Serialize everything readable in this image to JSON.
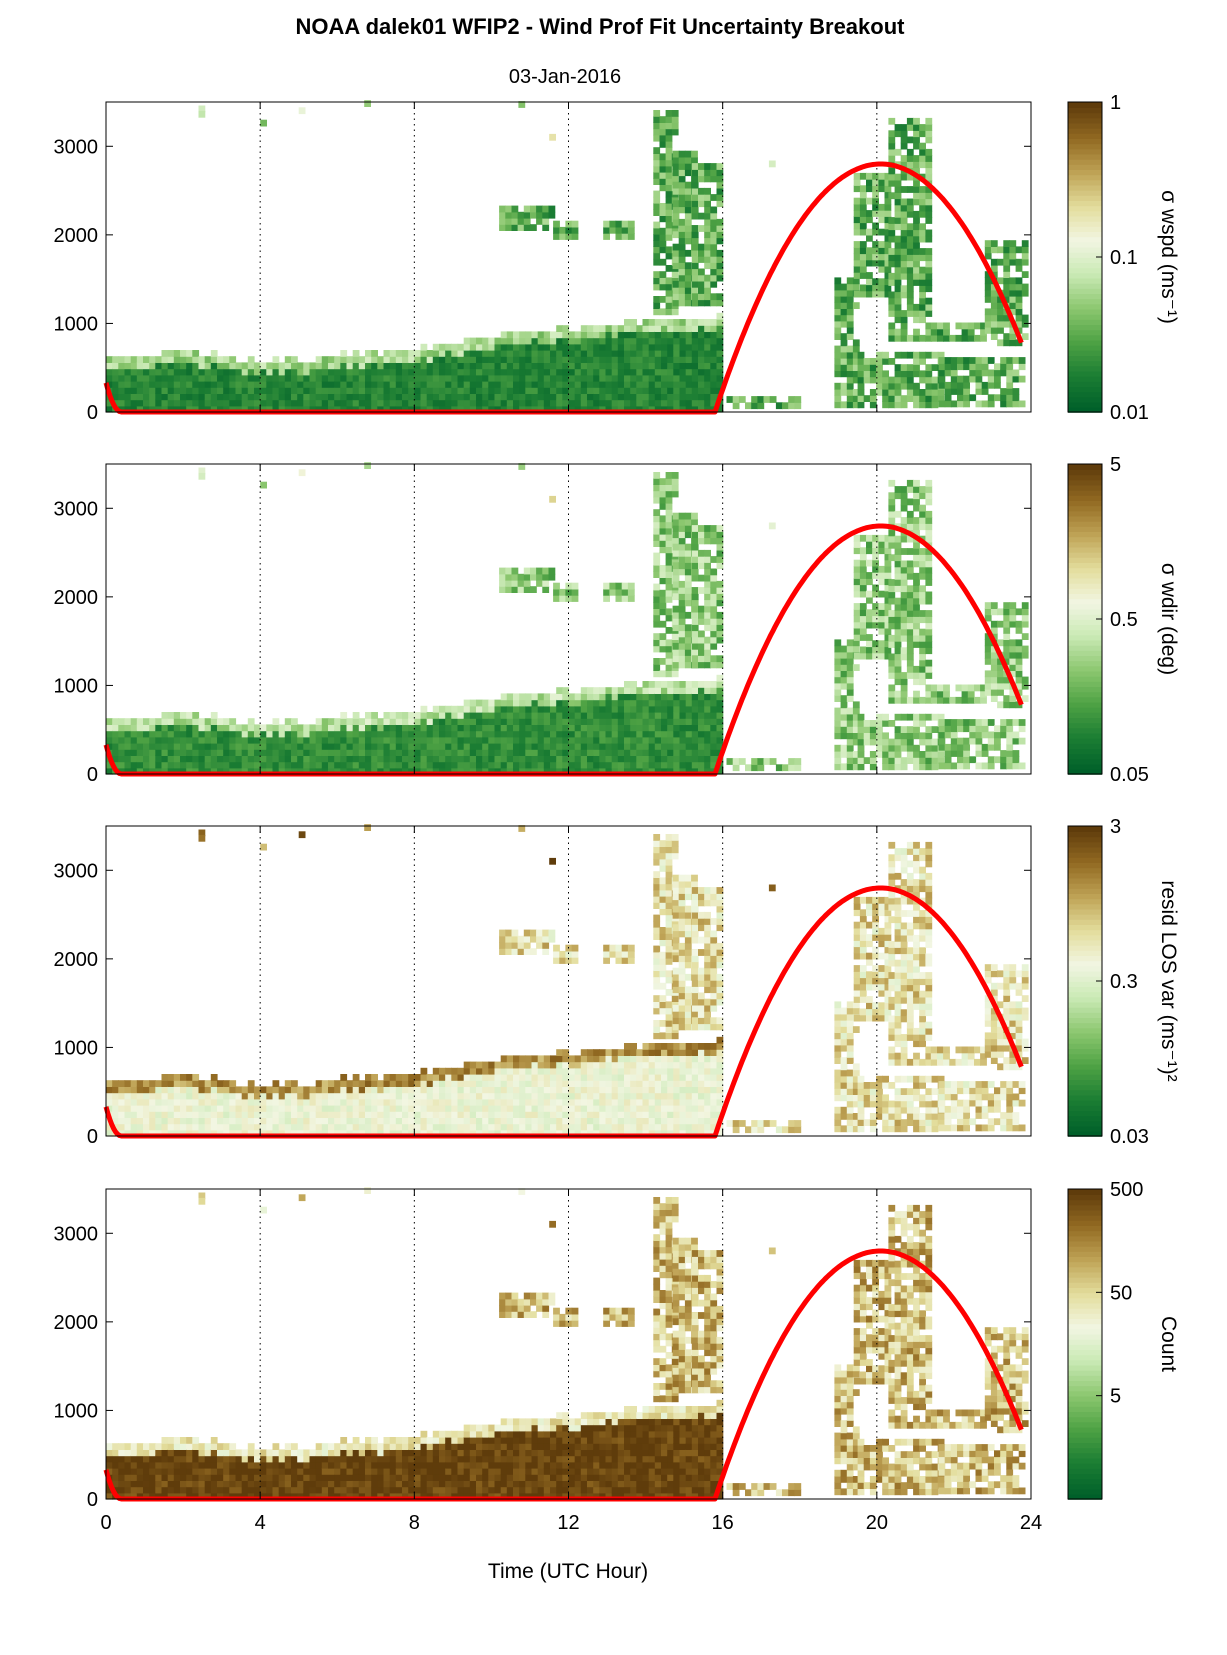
{
  "figure": {
    "title": "NOAA dalek01 WFIP2 - Wind Prof Fit Uncertainty Breakout",
    "subtitle": "03-Jan-2016",
    "xlabel": "Time (UTC Hour)"
  },
  "chart_data": [
    {
      "type": "heatmap",
      "variable": "sigma_wspd",
      "colorbar_label": "σ wspd (ms⁻¹)",
      "colorbar_scale": "log",
      "colorbar_range": [
        0.01,
        1
      ],
      "colorbar_ticks": [
        "1",
        "0.1",
        "0.01"
      ],
      "colormap": [
        "#00602a",
        "#1b7d33",
        "#4ea244",
        "#8cc76f",
        "#c9e9b4",
        "#f2f6e2",
        "#e3dd9c",
        "#bfa356",
        "#926a22",
        "#5f3c0b"
      ],
      "xlim": [
        0,
        24
      ],
      "ylim": [
        0,
        3500
      ],
      "yticks": [
        "0",
        "1000",
        "2000",
        "3000"
      ],
      "ytick_values": [
        0,
        1000,
        2000,
        3000
      ],
      "xticks": [
        0,
        4,
        8,
        12,
        16,
        20,
        24
      ],
      "grid": "vertical dotted every 4 h",
      "base_level": 0.13,
      "fringe_level": 0.38,
      "patch_boost": 0.12,
      "solar_curve": {
        "color": "#ff0000",
        "peak_hour": 20.1,
        "peak_height": 2800,
        "sunrise_hour": 15.8,
        "sunset_hour": 0.4
      }
    },
    {
      "type": "heatmap",
      "variable": "sigma_wdir",
      "colorbar_label": "σ wdir (deg)",
      "colorbar_scale": "log",
      "colorbar_range": [
        0.05,
        5
      ],
      "colorbar_ticks": [
        "5",
        "0.5",
        "0.05"
      ],
      "colormap": [
        "#00602a",
        "#1b7d33",
        "#4ea244",
        "#8cc76f",
        "#c9e9b4",
        "#f2f6e2",
        "#e3dd9c",
        "#bfa356",
        "#926a22",
        "#5f3c0b"
      ],
      "xlim": [
        0,
        24
      ],
      "ylim": [
        0,
        3500
      ],
      "yticks": [
        "0",
        "1000",
        "2000",
        "3000"
      ],
      "ytick_values": [
        0,
        1000,
        2000,
        3000
      ],
      "xticks": [
        0,
        4,
        8,
        12,
        16,
        20,
        24
      ],
      "grid": "vertical dotted every 4 h",
      "base_level": 0.16,
      "fringe_level": 0.42,
      "patch_boost": 0.18,
      "solar_curve": {
        "color": "#ff0000",
        "peak_hour": 20.1,
        "peak_height": 2800,
        "sunrise_hour": 15.8,
        "sunset_hour": 0.4
      }
    },
    {
      "type": "heatmap",
      "variable": "resid_los_var",
      "colorbar_label": "resid LOS var (ms⁻¹)²",
      "colorbar_scale": "log",
      "colorbar_range": [
        0.03,
        3
      ],
      "colorbar_ticks": [
        "3",
        "0.3",
        "0.03"
      ],
      "colormap": [
        "#00602a",
        "#1b7d33",
        "#4ea244",
        "#8cc76f",
        "#c9e9b4",
        "#f2f6e2",
        "#e3dd9c",
        "#bfa356",
        "#926a22",
        "#5f3c0b"
      ],
      "xlim": [
        0,
        24
      ],
      "ylim": [
        0,
        3500
      ],
      "yticks": [
        "0",
        "1000",
        "2000",
        "3000"
      ],
      "ytick_values": [
        0,
        1000,
        2000,
        3000
      ],
      "xticks": [
        0,
        4,
        8,
        12,
        16,
        20,
        24
      ],
      "grid": "vertical dotted every 4 h",
      "base_level": 0.55,
      "fringe_level": 0.82,
      "patch_boost": 0.1,
      "solar_curve": {
        "color": "#ff0000",
        "peak_hour": 20.1,
        "peak_height": 2800,
        "sunrise_hour": 15.8,
        "sunset_hour": 0.4
      }
    },
    {
      "type": "heatmap",
      "variable": "count",
      "colorbar_label": "Count",
      "colorbar_scale": "log",
      "colorbar_range": [
        0.5,
        500
      ],
      "colorbar_ticks": [
        "500",
        "50",
        "5"
      ],
      "colormap": [
        "#00602a",
        "#1b7d33",
        "#4ea244",
        "#8cc76f",
        "#c9e9b4",
        "#f2f6e2",
        "#e3dd9c",
        "#bfa356",
        "#926a22",
        "#5f3c0b"
      ],
      "xlim": [
        0,
        24
      ],
      "ylim": [
        0,
        3500
      ],
      "yticks": [
        "0",
        "1000",
        "2000",
        "3000"
      ],
      "ytick_values": [
        0,
        1000,
        2000,
        3000
      ],
      "xticks": [
        0,
        4,
        8,
        12,
        16,
        20,
        24
      ],
      "xticklabels": [
        "0",
        "4",
        "8",
        "12",
        "16",
        "20",
        "24"
      ],
      "grid": "vertical dotted every 4 h",
      "base_level": 0.98,
      "fringe_level": 0.62,
      "patch_boost": -0.25,
      "solar_curve": {
        "color": "#ff0000",
        "peak_hour": 20.1,
        "peak_height": 2800,
        "sunrise_hour": 15.8,
        "sunset_hour": 0.4
      }
    }
  ],
  "data_coverage": {
    "boundary_layer_top_m": [
      [
        0,
        580
      ],
      [
        1,
        620
      ],
      [
        2,
        640
      ],
      [
        3,
        590
      ],
      [
        4,
        540
      ],
      [
        5,
        550
      ],
      [
        6,
        600
      ],
      [
        7,
        640
      ],
      [
        8,
        660
      ],
      [
        9,
        760
      ],
      [
        10,
        850
      ],
      [
        11,
        880
      ],
      [
        12,
        900
      ],
      [
        13,
        960
      ],
      [
        14,
        1000
      ],
      [
        15,
        1020
      ],
      [
        15.9,
        1050
      ]
    ],
    "elevated_layers": [
      {
        "t0": 10.2,
        "t1": 11.6,
        "z0": 2050,
        "z1": 2280
      },
      {
        "t0": 11.6,
        "t1": 12.2,
        "z0": 1950,
        "z1": 2150
      },
      {
        "t0": 12.9,
        "t1": 13.6,
        "z0": 1950,
        "z1": 2120
      },
      {
        "t0": 14.2,
        "t1": 14.7,
        "z0": 1100,
        "z1": 3380
      },
      {
        "t0": 14.7,
        "t1": 15.2,
        "z0": 1200,
        "z1": 2900
      },
      {
        "t0": 15.2,
        "t1": 15.9,
        "z0": 1200,
        "z1": 2800
      },
      {
        "t0": 18.9,
        "t1": 19.5,
        "z0": 50,
        "z1": 1500
      },
      {
        "t0": 19.5,
        "t1": 21.6,
        "z0": 50,
        "z1": 650
      },
      {
        "t0": 21.6,
        "t1": 23.8,
        "z0": 60,
        "z1": 560
      },
      {
        "t0": 19.4,
        "t1": 20.3,
        "z0": 1300,
        "z1": 2700
      },
      {
        "t0": 20.3,
        "t1": 21.4,
        "z0": 800,
        "z1": 3300
      },
      {
        "t0": 21.4,
        "t1": 22.8,
        "z0": 800,
        "z1": 950
      },
      {
        "t0": 22.8,
        "t1": 23.8,
        "z0": 750,
        "z1": 1900
      },
      {
        "t0": 16.1,
        "t1": 18.0,
        "z0": 40,
        "z1": 160
      }
    ],
    "sparse_cells": [
      {
        "t": 2.4,
        "z": 3420
      },
      {
        "t": 2.4,
        "z": 3360
      },
      {
        "t": 4.0,
        "z": 3260
      },
      {
        "t": 5.0,
        "z": 3400
      },
      {
        "t": 6.7,
        "z": 3480
      },
      {
        "t": 10.7,
        "z": 3470
      },
      {
        "t": 11.5,
        "z": 3100
      },
      {
        "t": 17.2,
        "z": 2800
      }
    ]
  }
}
